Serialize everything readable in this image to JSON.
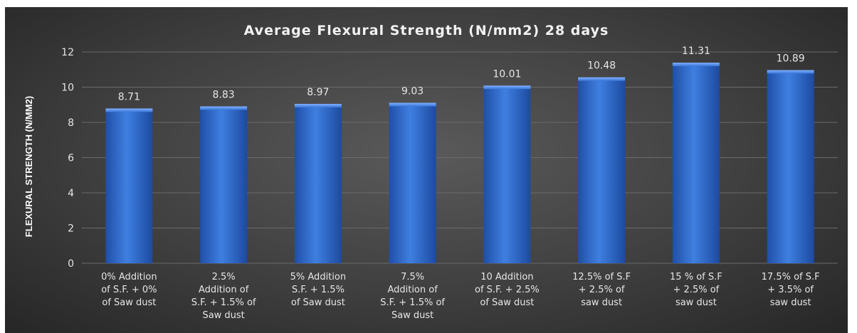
{
  "chart_data": {
    "type": "bar",
    "title": "Average Flexural Strength (N/mm2) 28 days",
    "ylabel": "FLEXURAL STRENGTH (N/MM2)",
    "xlabel": "",
    "ylim": [
      0,
      12
    ],
    "yticks": [
      0,
      2,
      4,
      6,
      8,
      10,
      12
    ],
    "grid": true,
    "bar_color": "#3a76d8",
    "categories": [
      [
        "0% Addition",
        "of S.F. + 0%",
        "of Saw dust"
      ],
      [
        "2.5%",
        "Addition of",
        "S.F. + 1.5% of",
        "Saw dust"
      ],
      [
        "5% Addition",
        "S.F. + 1.5%",
        "of Saw dust"
      ],
      [
        "7.5%",
        "Addition of",
        "S.F. + 1.5% of",
        "Saw dust"
      ],
      [
        "10 Addition",
        "of S.F. + 2.5%",
        "of Saw dust"
      ],
      [
        "12.5% of S.F",
        "+ 2.5% of",
        "saw dust"
      ],
      [
        "15 % of S.F",
        "+ 2.5% of",
        "saw dust"
      ],
      [
        "17.5% of S.F",
        "+ 3.5% of",
        "saw dust"
      ]
    ],
    "values": [
      8.71,
      8.83,
      8.97,
      9.03,
      10.01,
      10.48,
      11.31,
      10.89
    ],
    "data_labels": [
      "8.71",
      "8.83",
      "8.97",
      "9.03",
      "10.01",
      "10.48",
      "11.31",
      "10.89"
    ]
  }
}
